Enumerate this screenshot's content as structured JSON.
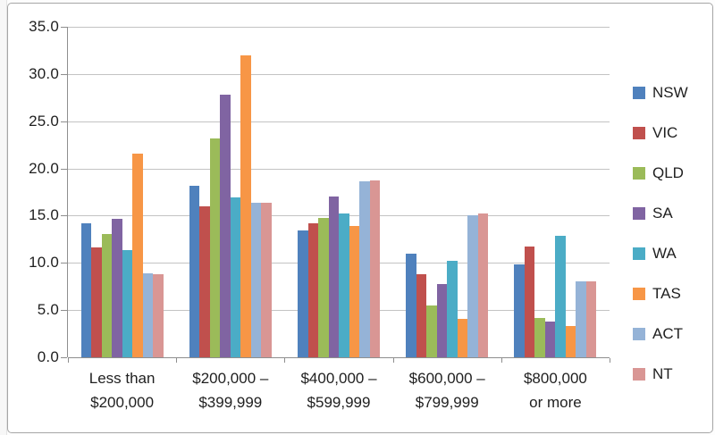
{
  "chart_data": {
    "type": "bar",
    "title": "",
    "categories": [
      "Less than $200,000",
      "$200,000 – $399,999",
      "$400,000 – $599,999",
      "$600,000 – $799,999",
      "$800,000 or more"
    ],
    "category_label_lines": [
      [
        "Less than",
        "$200,000"
      ],
      [
        "$200,000 –",
        "$399,999"
      ],
      [
        "$400,000 –",
        "$599,999"
      ],
      [
        "$600,000 –",
        "$799,999"
      ],
      [
        "$800,000",
        "or more"
      ]
    ],
    "series": [
      {
        "name": "NSW",
        "color": "#4F81BD",
        "values": [
          14.2,
          18.2,
          13.4,
          11.0,
          9.8
        ]
      },
      {
        "name": "VIC",
        "color": "#C0504D",
        "values": [
          11.6,
          16.0,
          14.2,
          8.8,
          11.7
        ]
      },
      {
        "name": "QLD",
        "color": "#9BBB59",
        "values": [
          13.1,
          23.2,
          14.8,
          5.5,
          4.2
        ]
      },
      {
        "name": "SA",
        "color": "#8064A2",
        "values": [
          14.7,
          27.8,
          17.0,
          7.8,
          3.8
        ]
      },
      {
        "name": "WA",
        "color": "#4BACC6",
        "values": [
          11.4,
          16.9,
          15.2,
          10.2,
          12.9
        ]
      },
      {
        "name": "TAS",
        "color": "#F79646",
        "values": [
          21.6,
          32.0,
          13.9,
          4.1,
          3.3
        ]
      },
      {
        "name": "ACT",
        "color": "#95B3D7",
        "values": [
          8.9,
          16.4,
          18.6,
          15.0,
          8.0
        ]
      },
      {
        "name": "NT",
        "color": "#D99694",
        "values": [
          8.8,
          16.4,
          18.7,
          15.2,
          8.0
        ]
      }
    ],
    "xlabel": "",
    "ylabel": "",
    "ylim": [
      0,
      35
    ],
    "ytick_step": 5,
    "ytick_labels": [
      "0.0",
      "5.0",
      "10.0",
      "15.0",
      "20.0",
      "25.0",
      "30.0",
      "35.0"
    ],
    "grid": true,
    "legend_position": "right"
  },
  "frame": {
    "background": "#FFFFFF",
    "border_color": "#A6A6A6",
    "gridline_color": "#C3C3C3",
    "axis_color": "#8E8E8E",
    "text_color": "#1F1F1F"
  }
}
